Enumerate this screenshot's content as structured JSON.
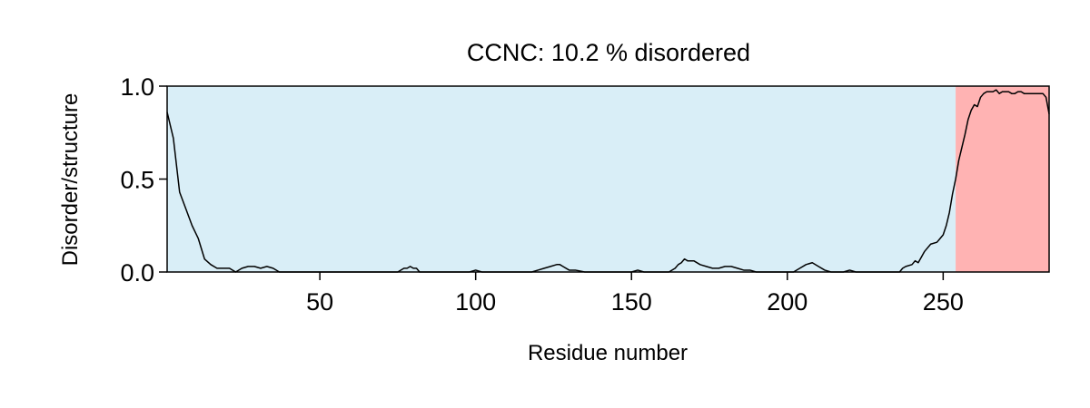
{
  "chart_data": {
    "type": "line",
    "title": "CCNC: 10.2 % disordered",
    "xlabel": "Residue number",
    "ylabel": "Disorder/structure",
    "xlim": [
      1,
      284
    ],
    "ylim": [
      0,
      1
    ],
    "xticks": [
      50,
      100,
      150,
      200,
      250
    ],
    "xtick_labels": [
      "50",
      "100",
      "150",
      "200",
      "250"
    ],
    "yticks": [
      0,
      0.5,
      1
    ],
    "ytick_labels": [
      "0.0",
      "0.5",
      "1.0"
    ],
    "grid": false,
    "regions": [
      {
        "start": 1,
        "end": 254,
        "label": "structured",
        "color": "#d9eef7"
      },
      {
        "start": 254,
        "end": 284,
        "label": "disordered",
        "color": "#ffb3b3"
      }
    ],
    "line_color": "#000000",
    "series": [
      {
        "x": [
          1,
          3,
          5,
          7,
          9,
          11,
          13,
          15,
          17,
          19,
          21,
          23,
          25,
          27,
          29,
          31,
          33,
          35,
          37,
          40,
          45,
          50,
          55,
          60,
          65,
          70,
          75,
          77,
          78,
          79,
          80,
          81,
          82,
          83,
          85,
          90,
          95,
          98,
          100,
          102,
          105,
          110,
          115,
          118,
          120,
          122,
          124,
          126,
          127,
          128,
          130,
          132,
          135,
          140,
          145,
          150,
          152,
          154,
          156,
          158,
          160,
          162,
          164,
          165,
          166,
          167,
          168,
          170,
          172,
          174,
          176,
          178,
          180,
          182,
          184,
          186,
          188,
          190,
          192,
          194,
          196,
          198,
          200,
          202,
          204,
          206,
          208,
          210,
          212,
          214,
          216,
          218,
          220,
          222,
          224,
          226,
          228,
          230,
          232,
          234,
          236,
          237,
          238,
          240,
          241,
          242,
          243,
          244,
          246,
          248,
          249,
          250,
          251,
          252,
          253,
          254,
          255,
          256,
          257,
          258,
          259,
          260,
          261,
          262,
          263,
          264,
          265,
          266,
          267,
          268,
          269,
          270,
          271,
          272,
          273,
          274,
          275,
          276,
          277,
          278,
          279,
          280,
          281,
          282,
          283,
          284
        ],
        "y": [
          0.86,
          0.72,
          0.43,
          0.34,
          0.25,
          0.18,
          0.07,
          0.04,
          0.02,
          0.02,
          0.02,
          0.0,
          0.02,
          0.03,
          0.03,
          0.02,
          0.03,
          0.02,
          0.0,
          0.0,
          0.0,
          0.0,
          0.0,
          0.0,
          0.0,
          0.0,
          0.0,
          0.02,
          0.02,
          0.03,
          0.02,
          0.02,
          0.0,
          0.0,
          0.0,
          0.0,
          0.0,
          0.0,
          0.01,
          0.0,
          0.0,
          0.0,
          0.0,
          0.0,
          0.01,
          0.02,
          0.03,
          0.04,
          0.04,
          0.03,
          0.01,
          0.01,
          0.0,
          0.0,
          0.0,
          0.0,
          0.01,
          0.0,
          0.0,
          0.0,
          0.0,
          0.0,
          0.02,
          0.04,
          0.05,
          0.07,
          0.06,
          0.06,
          0.04,
          0.03,
          0.02,
          0.02,
          0.03,
          0.03,
          0.02,
          0.01,
          0.01,
          0.0,
          0.0,
          0.0,
          0.0,
          0.0,
          0.0,
          0.0,
          0.02,
          0.04,
          0.05,
          0.03,
          0.01,
          0.0,
          0.0,
          0.0,
          0.01,
          0.0,
          0.0,
          0.0,
          0.0,
          0.0,
          0.0,
          0.0,
          0.0,
          0.02,
          0.03,
          0.04,
          0.06,
          0.05,
          0.08,
          0.11,
          0.15,
          0.16,
          0.18,
          0.2,
          0.25,
          0.32,
          0.42,
          0.5,
          0.6,
          0.67,
          0.74,
          0.82,
          0.87,
          0.9,
          0.89,
          0.94,
          0.96,
          0.97,
          0.97,
          0.97,
          0.98,
          0.96,
          0.97,
          0.97,
          0.97,
          0.96,
          0.96,
          0.97,
          0.97,
          0.96,
          0.96,
          0.96,
          0.96,
          0.96,
          0.96,
          0.96,
          0.94,
          0.85
        ]
      }
    ]
  }
}
